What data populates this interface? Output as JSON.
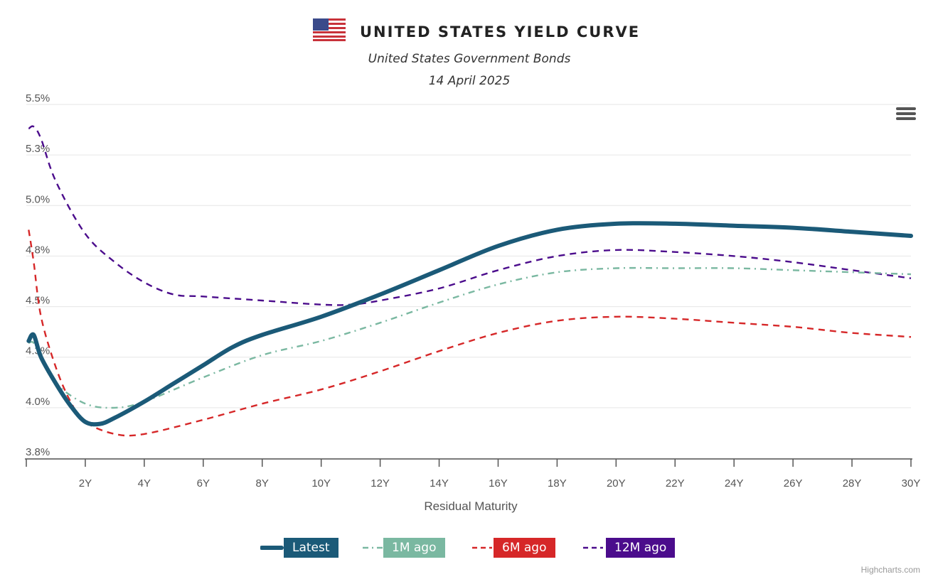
{
  "header": {
    "flag_icon": "us-flag-icon",
    "title": "UNITED STATES YIELD CURVE",
    "subtitle": "United States Government Bonds",
    "date": "14 April 2025"
  },
  "menu": {
    "icon": "hamburger-menu-icon"
  },
  "credits": "Highcharts.com",
  "chart_data": {
    "type": "line",
    "title": "UNITED STATES YIELD CURVE",
    "subtitle": "United States Government Bonds",
    "xlabel": "Residual Maturity",
    "ylabel": "",
    "xlim": [
      0,
      30
    ],
    "ylim": [
      3.8,
      5.5
    ],
    "x_ticks": [
      2,
      4,
      6,
      8,
      10,
      12,
      14,
      16,
      18,
      20,
      22,
      24,
      26,
      28,
      30
    ],
    "x_tick_labels": [
      "2Y",
      "4Y",
      "6Y",
      "8Y",
      "10Y",
      "12Y",
      "14Y",
      "16Y",
      "18Y",
      "20Y",
      "22Y",
      "24Y",
      "26Y",
      "28Y",
      "30Y"
    ],
    "y_ticks": [
      3.75,
      4.0,
      4.25,
      4.5,
      4.75,
      5.0,
      5.25,
      5.5
    ],
    "y_tick_labels": [
      "3.8%",
      "4.0%",
      "4.3%",
      "4.5%",
      "4.8%",
      "5.0%",
      "5.3%",
      "5.5%"
    ],
    "grid": "horizontal",
    "legend_placement": "bottom-center",
    "series": [
      {
        "name": "Latest",
        "color": "#1b5a78",
        "dash": "solid",
        "x": [
          0.08,
          0.25,
          0.5,
          1,
          1.5,
          2,
          2.5,
          3,
          4,
          5,
          6,
          7,
          8,
          10,
          12,
          14,
          16,
          18,
          20,
          22,
          24,
          26,
          28,
          30
        ],
        "y": [
          4.33,
          4.36,
          4.25,
          4.12,
          4.01,
          3.93,
          3.92,
          3.95,
          4.03,
          4.12,
          4.21,
          4.3,
          4.36,
          4.45,
          4.56,
          4.68,
          4.8,
          4.88,
          4.91,
          4.91,
          4.9,
          4.89,
          4.87,
          4.85
        ]
      },
      {
        "name": "1M ago",
        "color": "#7ab8a1",
        "dash": "dashdot",
        "x": [
          0.08,
          0.25,
          0.5,
          1,
          2,
          3,
          4,
          6,
          8,
          10,
          12,
          14,
          16,
          18,
          20,
          22,
          24,
          26,
          28,
          30
        ],
        "y": [
          4.32,
          4.32,
          4.24,
          4.12,
          4.02,
          4.0,
          4.03,
          4.15,
          4.26,
          4.33,
          4.42,
          4.52,
          4.61,
          4.67,
          4.69,
          4.69,
          4.69,
          4.68,
          4.67,
          4.66
        ]
      },
      {
        "name": "6M ago",
        "color": "#d62728",
        "dash": "dash",
        "x": [
          0.08,
          0.25,
          0.5,
          1,
          1.5,
          2,
          3,
          4,
          6,
          8,
          10,
          12,
          14,
          16,
          18,
          20,
          22,
          24,
          26,
          28,
          30
        ],
        "y": [
          4.88,
          4.72,
          4.45,
          4.2,
          4.03,
          3.93,
          3.87,
          3.87,
          3.94,
          4.02,
          4.09,
          4.18,
          4.28,
          4.37,
          4.43,
          4.45,
          4.44,
          4.42,
          4.4,
          4.37,
          4.35
        ]
      },
      {
        "name": "12M ago",
        "color": "#4b0c8c",
        "dash": "dash",
        "x": [
          0.08,
          0.25,
          0.5,
          1,
          2,
          3,
          4,
          5,
          6,
          8,
          10,
          11,
          12,
          14,
          16,
          18,
          20,
          22,
          24,
          26,
          28,
          30
        ],
        "y": [
          5.38,
          5.39,
          5.33,
          5.12,
          4.86,
          4.72,
          4.62,
          4.56,
          4.55,
          4.53,
          4.51,
          4.51,
          4.53,
          4.59,
          4.68,
          4.75,
          4.78,
          4.77,
          4.75,
          4.72,
          4.68,
          4.64
        ]
      }
    ]
  }
}
